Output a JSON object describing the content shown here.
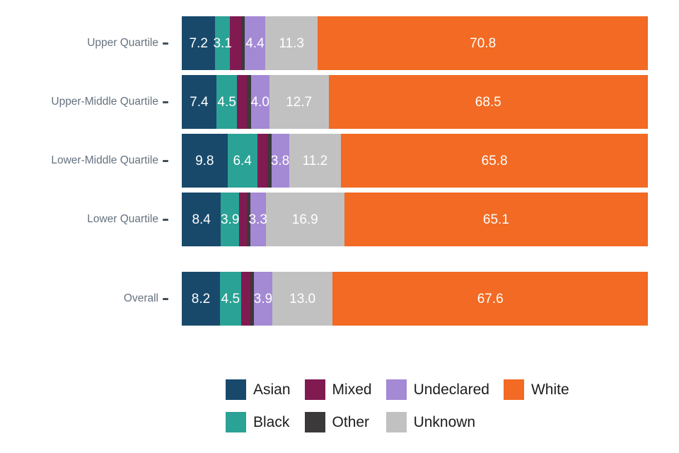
{
  "chart_data": {
    "type": "bar",
    "orientation": "horizontal",
    "stacked": true,
    "units": "percent",
    "title": "",
    "xlabel": "",
    "ylabel": "",
    "xlim": [
      0,
      100
    ],
    "grid": false,
    "categories": [
      "Upper Quartile",
      "Upper-Middle Quartile",
      "Lower-Middle Quartile",
      "Lower Quartile",
      "Overall"
    ],
    "series": [
      {
        "name": "Asian",
        "color": "#18496b",
        "values": [
          7.2,
          7.4,
          9.8,
          8.4,
          8.2
        ]
      },
      {
        "name": "Black",
        "color": "#2aa295",
        "values": [
          3.1,
          4.5,
          6.4,
          3.9,
          4.5
        ]
      },
      {
        "name": "Mixed",
        "color": "#811a51",
        "values": [
          2.5,
          2.1,
          2.2,
          1.7,
          2.0
        ]
      },
      {
        "name": "Other",
        "color": "#3b393a",
        "values": [
          0.7,
          0.8,
          0.8,
          0.7,
          0.8
        ]
      },
      {
        "name": "Undeclared",
        "color": "#a489d4",
        "values": [
          4.4,
          4.0,
          3.8,
          3.3,
          3.9
        ]
      },
      {
        "name": "Unknown",
        "color": "#c2c1c1",
        "values": [
          11.3,
          12.7,
          11.2,
          16.9,
          13.0
        ]
      },
      {
        "name": "White",
        "color": "#f26a23",
        "values": [
          70.8,
          68.5,
          65.8,
          65.1,
          67.6
        ]
      }
    ],
    "value_labels": {
      "shown_min_value": 3.0,
      "decimals": 1,
      "color": "#ffffff",
      "note": "segment percentages printed inside bars; Mixed and Other segments are unlabeled (values estimated from segment widths / remainder to 100)"
    },
    "legend": {
      "position": "bottom",
      "rows": [
        [
          "Asian",
          "Mixed",
          "Undeclared",
          "White"
        ],
        [
          "Black",
          "Other",
          "Unknown"
        ]
      ]
    },
    "axis": {
      "label_color": "#66727f",
      "tick_color": "#424e5a"
    }
  }
}
